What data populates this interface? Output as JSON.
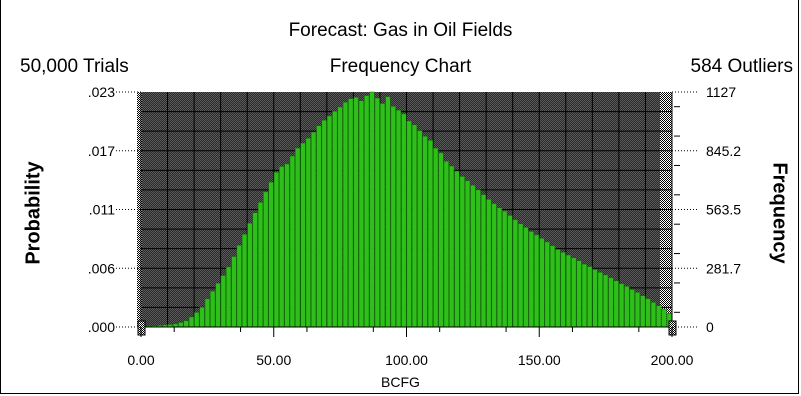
{
  "chart_data": {
    "type": "bar",
    "title": "Forecast: Gas in Oil Fields",
    "subtitle": "Frequency Chart",
    "trials_label": "50,000 Trials",
    "outliers_label": "584 Outliers",
    "xlabel": "BCFG",
    "ylabel_left": "Probability",
    "ylabel_right": "Frequency",
    "xlim": [
      0,
      200
    ],
    "ylim_probability": [
      0,
      0.0225
    ],
    "ylim_frequency": [
      0,
      1127
    ],
    "x_ticks": [
      "0.00",
      "50.00",
      "100.00",
      "150.00",
      "200.00"
    ],
    "y_ticks_left": [
      ".000",
      ".006",
      ".011",
      ".017",
      ".023"
    ],
    "y_ticks_right": [
      "0",
      "281.7",
      "563.5",
      "845.2",
      "1127"
    ],
    "grid": true,
    "bin_width": 2,
    "x": [
      1,
      3,
      5,
      7,
      9,
      11,
      13,
      15,
      17,
      19,
      21,
      23,
      25,
      27,
      29,
      31,
      33,
      35,
      37,
      39,
      41,
      43,
      45,
      47,
      49,
      51,
      53,
      55,
      57,
      59,
      61,
      63,
      65,
      67,
      69,
      71,
      73,
      75,
      77,
      79,
      81,
      83,
      85,
      87,
      89,
      91,
      93,
      95,
      97,
      99,
      101,
      103,
      105,
      107,
      109,
      111,
      113,
      115,
      117,
      119,
      121,
      123,
      125,
      127,
      129,
      131,
      133,
      135,
      137,
      139,
      141,
      143,
      145,
      147,
      149,
      151,
      153,
      155,
      157,
      159,
      161,
      163,
      165,
      167,
      169,
      171,
      173,
      175,
      177,
      179,
      181,
      183,
      185,
      187,
      189,
      191,
      193,
      195,
      197,
      199
    ],
    "values": [
      3,
      5,
      6,
      8,
      10,
      12,
      15,
      22,
      30,
      48,
      70,
      95,
      135,
      172,
      210,
      247,
      288,
      338,
      392,
      445,
      498,
      548,
      598,
      648,
      695,
      742,
      770,
      782,
      820,
      858,
      882,
      905,
      935,
      965,
      992,
      1012,
      1035,
      1055,
      1078,
      1095,
      1102,
      1085,
      1110,
      1127,
      1098,
      1072,
      1105,
      1058,
      1040,
      1022,
      988,
      970,
      942,
      915,
      895,
      858,
      835,
      795,
      772,
      748,
      722,
      702,
      680,
      658,
      635,
      612,
      592,
      572,
      556,
      535,
      515,
      495,
      478,
      458,
      442,
      425,
      408,
      390,
      372,
      358,
      345,
      332,
      318,
      302,
      290,
      276,
      262,
      250,
      236,
      222,
      208,
      195,
      180,
      166,
      150,
      136,
      118,
      102,
      86,
      66
    ]
  }
}
